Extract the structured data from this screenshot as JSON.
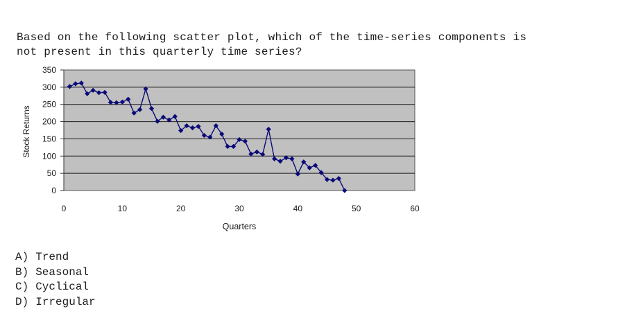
{
  "question": {
    "line1": "Based on the following scatter plot, which of the time-series components is",
    "line2": "not present in this quarterly time series?"
  },
  "options": [
    {
      "key": "A)",
      "text": "Trend"
    },
    {
      "key": "B)",
      "text": "Seasonal"
    },
    {
      "key": "C)",
      "text": "Cyclical"
    },
    {
      "key": "D)",
      "text": "Irregular"
    }
  ],
  "chart_data": {
    "type": "line",
    "title": "",
    "xlabel": "Quarters",
    "ylabel": "Stock Returns",
    "xlim": [
      0,
      60
    ],
    "ylim": [
      0,
      350
    ],
    "xticks": [
      0,
      10,
      20,
      30,
      40,
      50,
      60
    ],
    "yticks": [
      0,
      50,
      100,
      150,
      200,
      250,
      300,
      350
    ],
    "grid": true,
    "legend": "none",
    "colors": {
      "plot_background": "#c0c0c0",
      "series": "#0a0a78",
      "gridline": "#1a1a1a"
    },
    "series": [
      {
        "name": "",
        "marker": "diamond",
        "x": [
          1,
          2,
          3,
          4,
          5,
          6,
          7,
          8,
          9,
          10,
          11,
          12,
          13,
          14,
          15,
          16,
          17,
          18,
          19,
          20,
          21,
          22,
          23,
          24,
          25,
          26,
          27,
          28,
          29,
          30,
          31,
          32,
          33,
          34,
          35,
          36,
          37,
          38,
          39,
          40,
          41,
          42,
          43,
          44,
          45,
          46,
          47,
          48
        ],
        "y": [
          302,
          310,
          312,
          281,
          291,
          284,
          285,
          256,
          255,
          257,
          265,
          225,
          235,
          295,
          238,
          201,
          213,
          205,
          215,
          174,
          188,
          182,
          186,
          160,
          155,
          188,
          164,
          128,
          128,
          148,
          143,
          106,
          112,
          105,
          178,
          92,
          85,
          95,
          92,
          48,
          83,
          66,
          73,
          52,
          32,
          30,
          35,
          0
        ]
      }
    ]
  }
}
